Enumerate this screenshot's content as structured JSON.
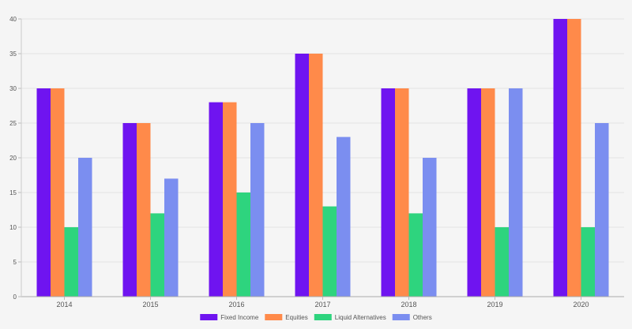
{
  "chart_data": {
    "type": "bar",
    "title": "",
    "xlabel": "",
    "ylabel": "",
    "categories": [
      "2014",
      "2015",
      "2016",
      "2017",
      "2018",
      "2019",
      "2020"
    ],
    "ylim": [
      0,
      40
    ],
    "yticks": [
      0,
      5,
      10,
      15,
      20,
      25,
      30,
      35,
      40
    ],
    "grid": true,
    "legend_position": "bottom",
    "series": [
      {
        "name": "Fixed Income",
        "color": "#6f14f0",
        "values": [
          30,
          25,
          28,
          35,
          30,
          30,
          40
        ]
      },
      {
        "name": "Equities",
        "color": "#ff8a4a",
        "values": [
          30,
          25,
          28,
          35,
          30,
          30,
          40
        ]
      },
      {
        "name": "Liquid Alternatives",
        "color": "#2ed47e",
        "values": [
          10,
          12,
          15,
          13,
          12,
          10,
          10
        ]
      },
      {
        "name": "Others",
        "color": "#7b8ef0",
        "values": [
          20,
          17,
          25,
          23,
          20,
          30,
          25
        ]
      }
    ]
  }
}
